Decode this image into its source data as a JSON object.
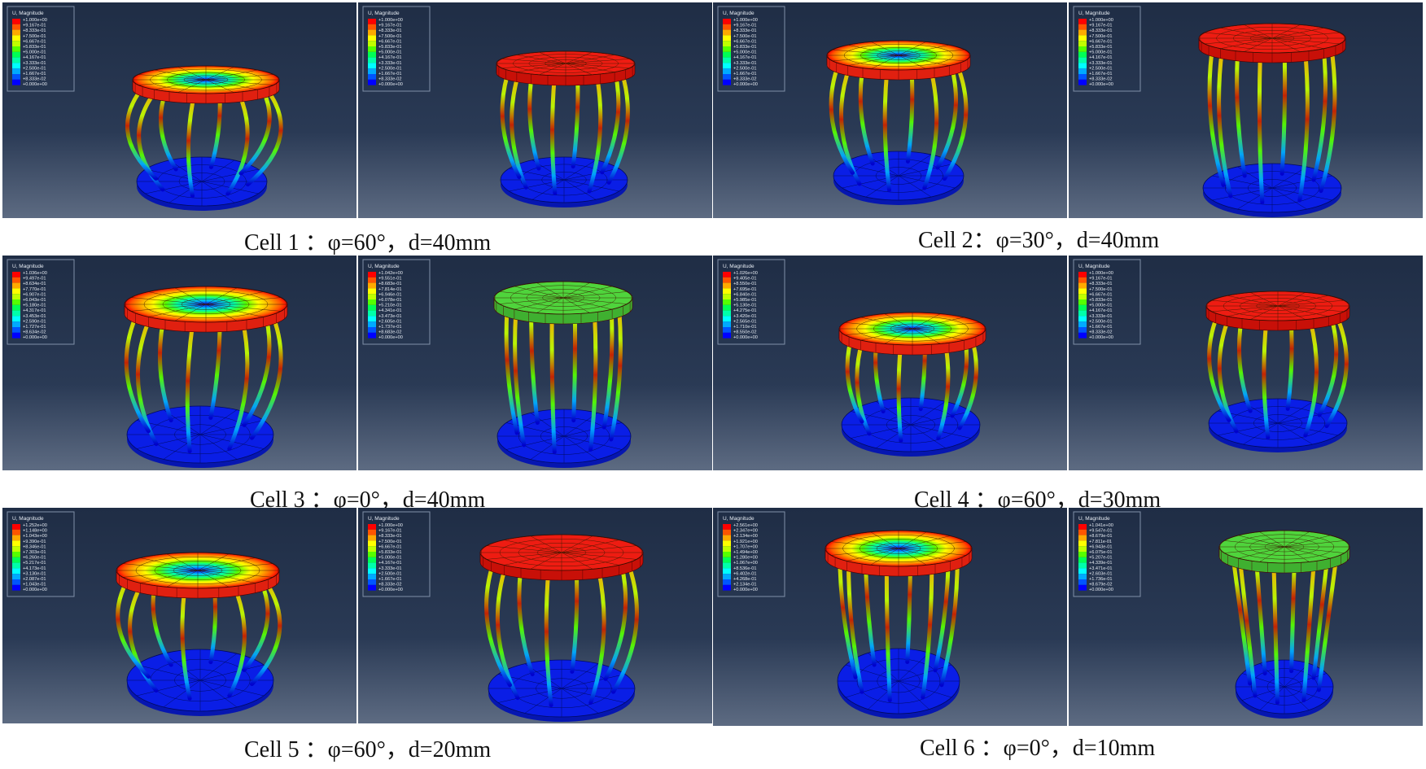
{
  "legend_title": "U, Magnitude",
  "colormap": [
    "#ff0000",
    "#ff5500",
    "#ffaa00",
    "#ffff00",
    "#c0ff00",
    "#55ff00",
    "#00ff55",
    "#00ffaa",
    "#00ffff",
    "#00aaff",
    "#0055ff",
    "#0000ff"
  ],
  "colors": {
    "viewport_top": "#1f2d45",
    "viewport_bottom": "#5d6b82",
    "base_blue": "#0a1ee6",
    "top_red": "#ee1c12",
    "top_green": "#4fd43c"
  },
  "cells": [
    {
      "caption": "Cell 1 ：φ=60°，d=40mm",
      "panels": [
        {
          "legend": [
            "+1.000e+00",
            "+9.167e-01",
            "+8.333e-01",
            "+7.500e-01",
            "+6.667e-01",
            "+5.833e-01",
            "+5.000e-01",
            "+4.167e-01",
            "+3.333e-01",
            "+2.500e-01",
            "+1.667e-01",
            "+8.333e-02",
            "+0.000e+00"
          ],
          "top": "gradient"
        },
        {
          "legend": [
            "+1.000e+00",
            "+9.167e-01",
            "+8.333e-01",
            "+7.500e-01",
            "+6.667e-01",
            "+5.833e-01",
            "+5.000e-01",
            "+4.167e-01",
            "+3.333e-01",
            "+2.500e-01",
            "+1.667e-01",
            "+8.333e-02",
            "+0.000e+00"
          ],
          "top": "red"
        }
      ]
    },
    {
      "caption": "Cell 2：φ=30°，d=40mm",
      "panels": [
        {
          "legend": [
            "+1.000e+00",
            "+9.167e-01",
            "+8.333e-01",
            "+7.500e-01",
            "+6.667e-01",
            "+5.833e-01",
            "+5.000e-01",
            "+4.167e-01",
            "+3.333e-01",
            "+2.500e-01",
            "+1.667e-01",
            "+8.333e-02",
            "+0.000e+00"
          ],
          "top": "gradient"
        },
        {
          "legend": [
            "+1.000e+00",
            "+9.167e-01",
            "+8.333e-01",
            "+7.500e-01",
            "+6.667e-01",
            "+5.833e-01",
            "+5.000e-01",
            "+4.167e-01",
            "+3.333e-01",
            "+2.500e-01",
            "+1.667e-01",
            "+8.333e-02",
            "+0.000e+00"
          ],
          "top": "red"
        }
      ]
    },
    {
      "caption": "Cell 3 ：φ=0°，d=40mm",
      "panels": [
        {
          "legend": [
            "+1.036e+00",
            "+9.497e-01",
            "+8.634e-01",
            "+7.770e-01",
            "+6.907e-01",
            "+6.043e-01",
            "+5.180e-01",
            "+4.317e-01",
            "+3.453e-01",
            "+2.590e-01",
            "+1.727e-01",
            "+8.634e-02",
            "+0.000e+00"
          ],
          "top": "gradient"
        },
        {
          "legend": [
            "+1.042e+00",
            "+9.551e-01",
            "+8.683e-01",
            "+7.814e-01",
            "+6.946e-01",
            "+6.078e-01",
            "+5.210e-01",
            "+4.341e-01",
            "+3.473e-01",
            "+2.605e-01",
            "+1.737e-01",
            "+8.683e-02",
            "+0.000e+00"
          ],
          "top": "green"
        }
      ]
    },
    {
      "caption": "Cell 4 ：φ=60°，d=30mm",
      "panels": [
        {
          "legend": [
            "+1.026e+00",
            "+9.405e-01",
            "+8.550e-01",
            "+7.695e-01",
            "+6.840e-01",
            "+5.985e-01",
            "+5.130e-01",
            "+4.275e-01",
            "+3.420e-01",
            "+2.565e-01",
            "+1.710e-01",
            "+8.550e-02",
            "+0.000e+00"
          ],
          "top": "gradient"
        },
        {
          "legend": [
            "+1.000e+00",
            "+9.167e-01",
            "+8.333e-01",
            "+7.500e-01",
            "+6.667e-01",
            "+5.833e-01",
            "+5.000e-01",
            "+4.167e-01",
            "+3.333e-01",
            "+2.500e-01",
            "+1.667e-01",
            "+8.333e-02",
            "+0.000e+00"
          ],
          "top": "red"
        }
      ]
    },
    {
      "caption": "Cell 5 ：φ=60°，d=20mm",
      "panels": [
        {
          "legend": [
            "+1.252e+00",
            "+1.148e+00",
            "+1.043e+00",
            "+9.390e-01",
            "+8.346e-01",
            "+7.303e-01",
            "+6.260e-01",
            "+5.217e-01",
            "+4.173e-01",
            "+3.130e-01",
            "+2.087e-01",
            "+1.043e-01",
            "+0.000e+00"
          ],
          "top": "gradient"
        },
        {
          "legend": [
            "+1.000e+00",
            "+9.167e-01",
            "+8.333e-01",
            "+7.500e-01",
            "+6.667e-01",
            "+5.833e-01",
            "+5.000e-01",
            "+4.167e-01",
            "+3.333e-01",
            "+2.500e-01",
            "+1.667e-01",
            "+8.333e-02",
            "+0.000e+00"
          ],
          "top": "red"
        }
      ]
    },
    {
      "caption": "Cell 6 ：φ=0°，d=10mm",
      "panels": [
        {
          "legend": [
            "+2.561e+00",
            "+2.347e+00",
            "+2.134e+00",
            "+1.921e+00",
            "+1.707e+00",
            "+1.494e+00",
            "+1.280e+00",
            "+1.067e+00",
            "+8.536e-01",
            "+6.402e-01",
            "+4.268e-01",
            "+2.134e-01",
            "+0.000e+00"
          ],
          "top": "gradient"
        },
        {
          "legend": [
            "+1.041e+00",
            "+9.547e-01",
            "+8.679e-01",
            "+7.811e-01",
            "+6.943e-01",
            "+6.075e-01",
            "+5.207e-01",
            "+4.339e-01",
            "+3.471e-01",
            "+2.603e-01",
            "+1.736e-01",
            "+8.679e-02",
            "+0.000e+00"
          ],
          "top": "green"
        }
      ]
    }
  ]
}
